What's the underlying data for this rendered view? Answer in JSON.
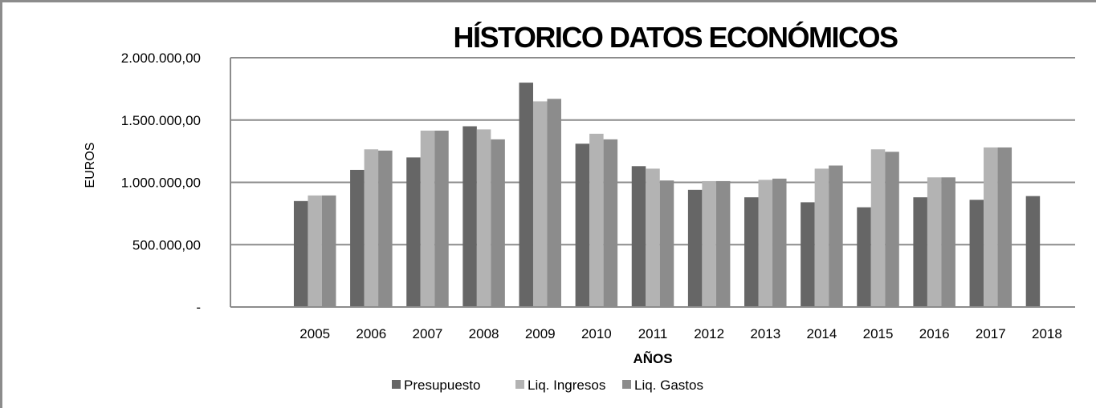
{
  "chart_data": {
    "type": "bar",
    "title": "HÍSTORICO DATOS ECONÓMICOS",
    "xlabel": "AÑOS",
    "ylabel": "EUROS",
    "ylim": [
      0,
      2000000
    ],
    "y_ticks": [
      0,
      500000,
      1000000,
      1500000,
      2000000
    ],
    "y_tick_labels": [
      "-",
      "500.000,00",
      "1.000.000,00",
      "1.500.000,00",
      "2.000.000,00"
    ],
    "grid": true,
    "legend_position": "bottom",
    "categories": [
      "",
      "2005",
      "2006",
      "2007",
      "2008",
      "2009",
      "2010",
      "2011",
      "2012",
      "2013",
      "2014",
      "2015",
      "2016",
      "2017",
      "2018"
    ],
    "series": [
      {
        "name": "Presupuesto",
        "color": "#666666",
        "values": [
          null,
          850000,
          1100000,
          1200000,
          1450000,
          1800000,
          1310000,
          1130000,
          940000,
          880000,
          840000,
          800000,
          880000,
          860000,
          890000
        ]
      },
      {
        "name": "Liq. Ingresos",
        "color": "#b3b3b3",
        "values": [
          null,
          895000,
          1265000,
          1415000,
          1425000,
          1650000,
          1390000,
          1110000,
          1010000,
          1020000,
          1110000,
          1265000,
          1040000,
          1280000,
          null
        ]
      },
      {
        "name": "Liq. Gastos",
        "color": "#8c8c8c",
        "values": [
          null,
          895000,
          1255000,
          1415000,
          1345000,
          1670000,
          1345000,
          1015000,
          1010000,
          1030000,
          1135000,
          1245000,
          1040000,
          1280000,
          null
        ]
      }
    ]
  }
}
